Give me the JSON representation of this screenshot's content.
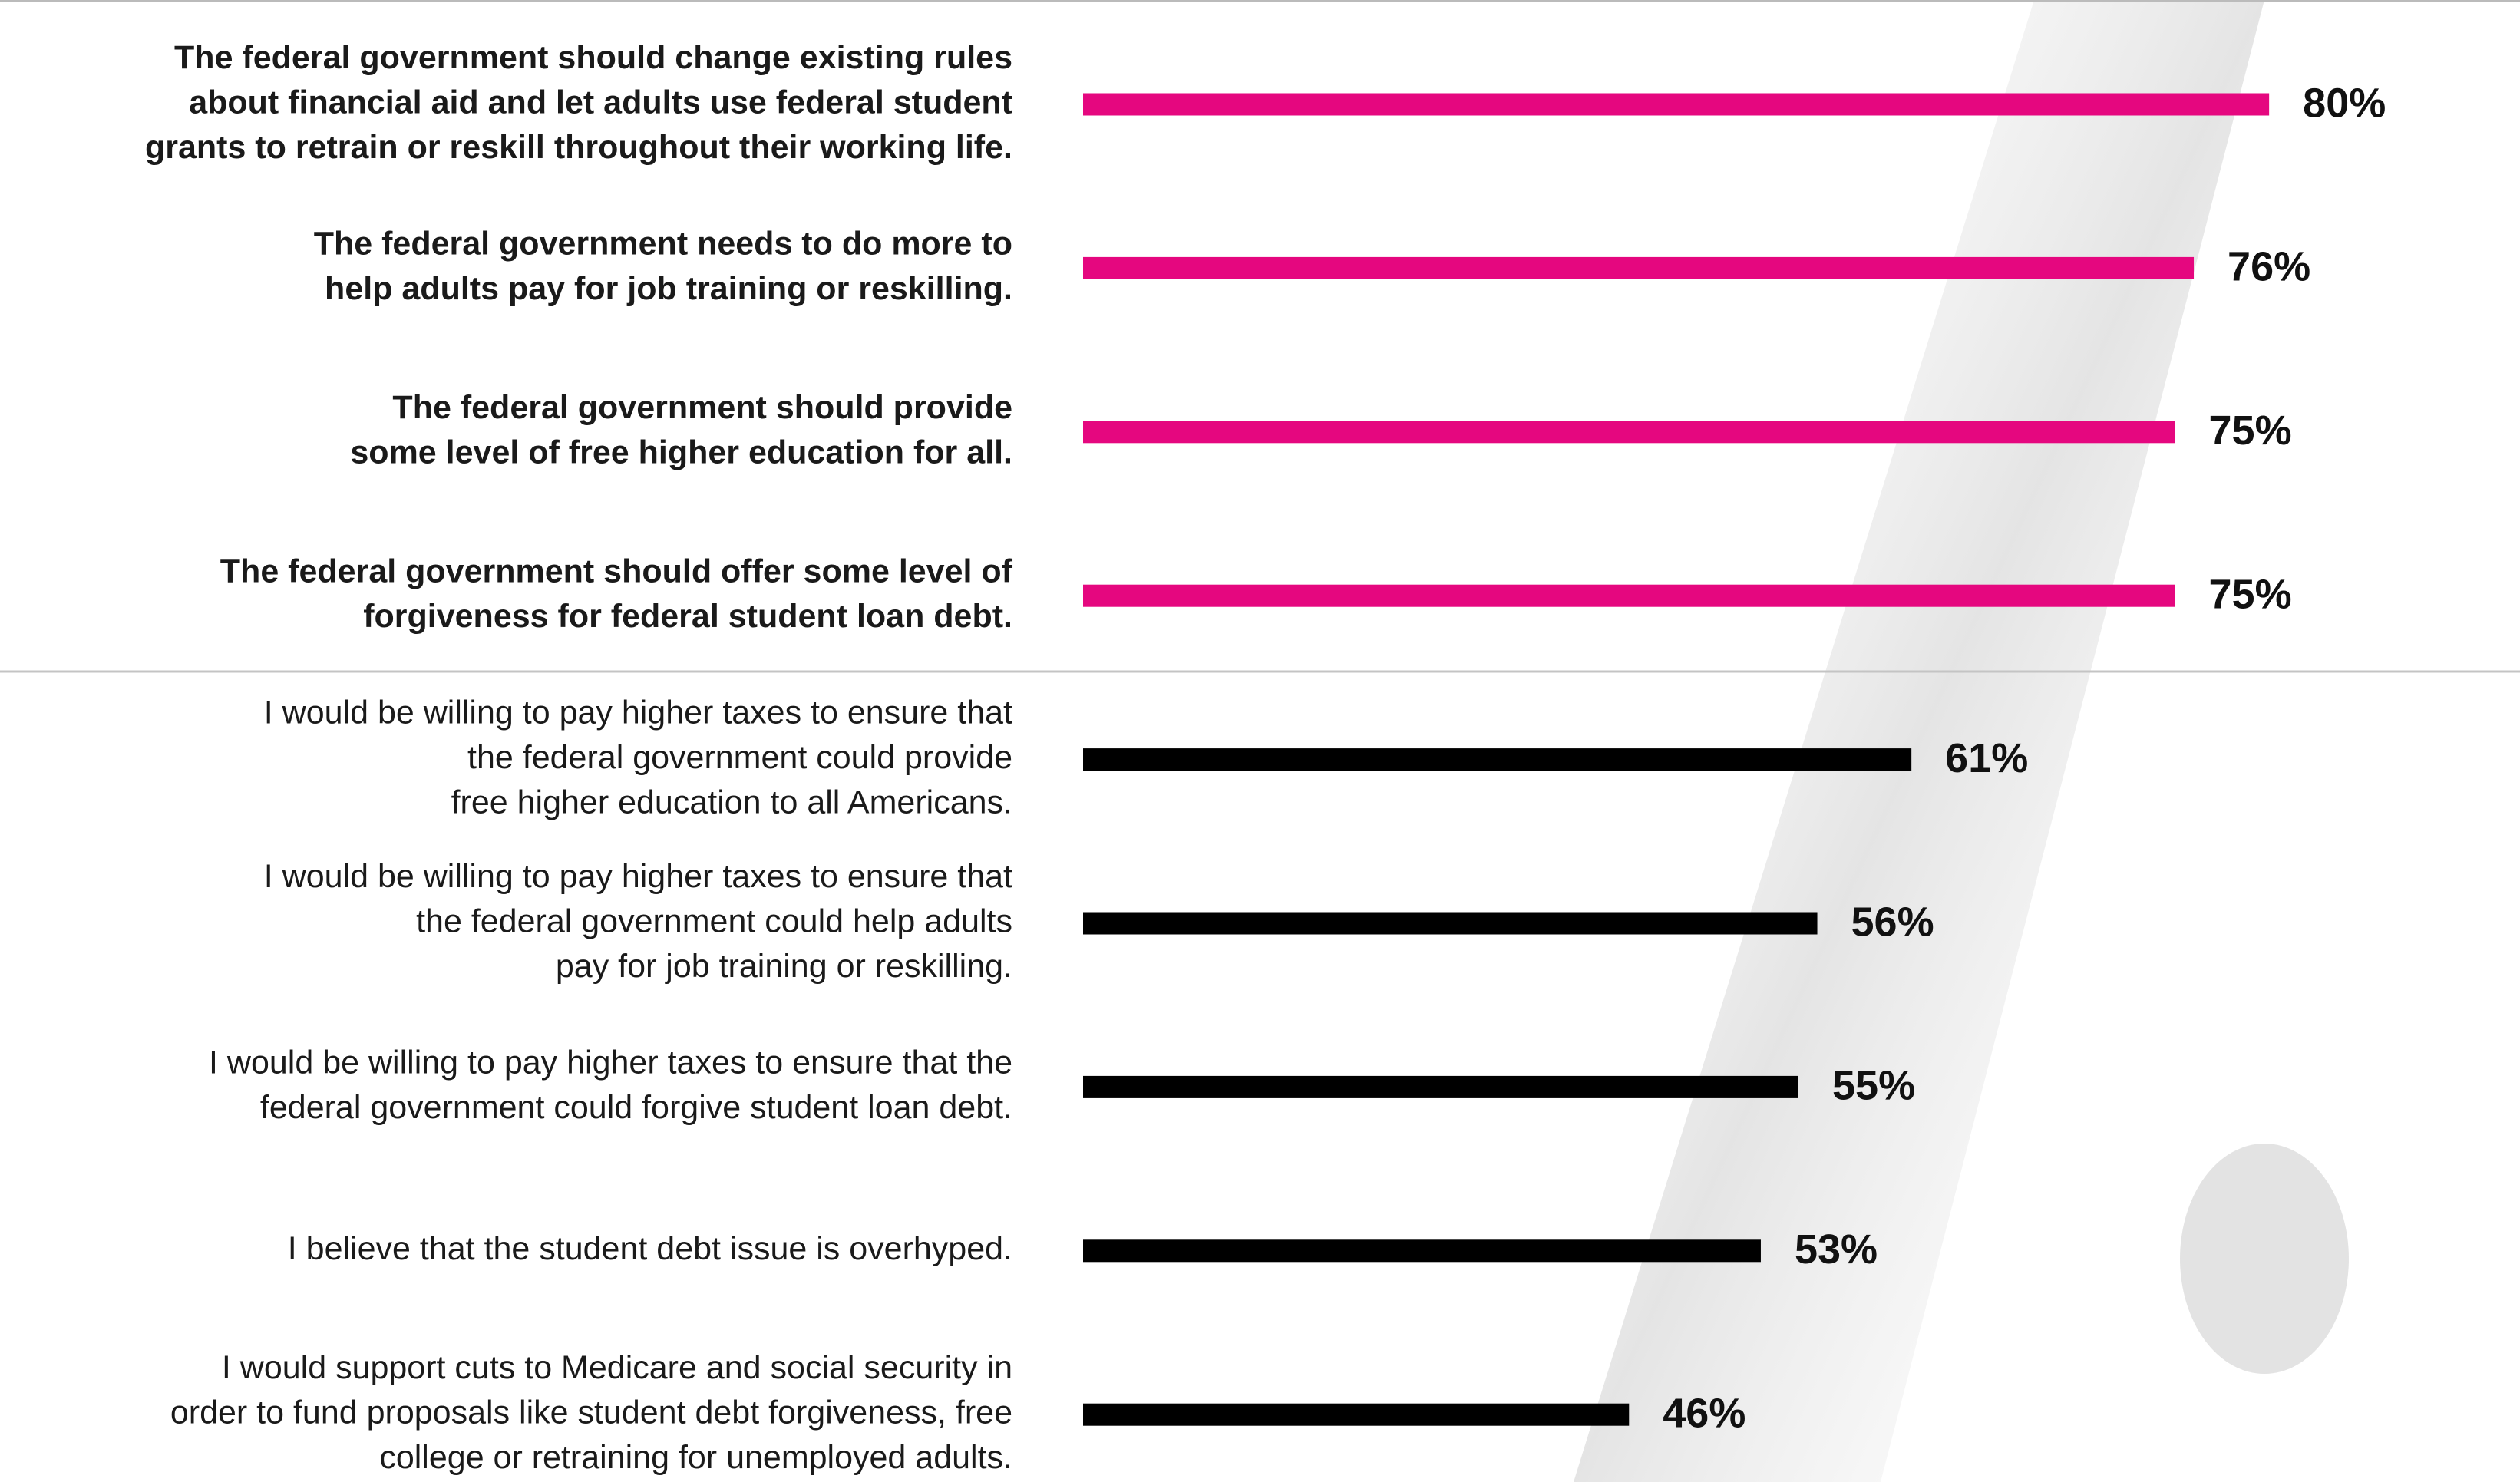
{
  "chart_data": {
    "type": "bar",
    "orientation": "horizontal",
    "categories": [
      [
        "The federal government should change existing rules",
        "about financial aid and let adults use federal student",
        "grants to retrain or reskill throughout their working life."
      ],
      [
        "The federal government needs to do more to",
        "help adults pay for job training or reskilling."
      ],
      [
        "The federal  government should provide",
        "some level of free higher education for all."
      ],
      [
        "The federal government should offer some level of",
        "forgiveness for federal student loan debt."
      ],
      [
        "I would be willing to pay higher taxes to ensure that",
        "the federal government could provide",
        "free higher education to all Americans."
      ],
      [
        "I would be willing to pay higher taxes to ensure that",
        "the federal government could help adults",
        "pay for job training or reskilling."
      ],
      [
        "I would be willing to pay higher taxes to ensure that the",
        "federal government could forgive student loan debt."
      ],
      [
        "I believe that the student debt issue is overhyped."
      ],
      [
        "I would support cuts to Medicare and social security in",
        "order to fund proposals like student debt forgiveness, free",
        "college or retraining for unemployed adults."
      ]
    ],
    "values": [
      80,
      76,
      75,
      75,
      61,
      56,
      55,
      53,
      46
    ],
    "value_labels": [
      "80%",
      "76%",
      "75%",
      "75%",
      "61%",
      "56%",
      "55%",
      "53%",
      "46%"
    ],
    "colors": [
      "#e5077f",
      "#e5077f",
      "#e5077f",
      "#e5077f",
      "#000000",
      "#000000",
      "#000000",
      "#000000",
      "#000000"
    ],
    "label_weight": [
      "bold",
      "bold",
      "bold",
      "bold",
      "normal",
      "normal",
      "normal",
      "normal",
      "normal"
    ],
    "xlim": [
      17,
      93
    ]
  }
}
